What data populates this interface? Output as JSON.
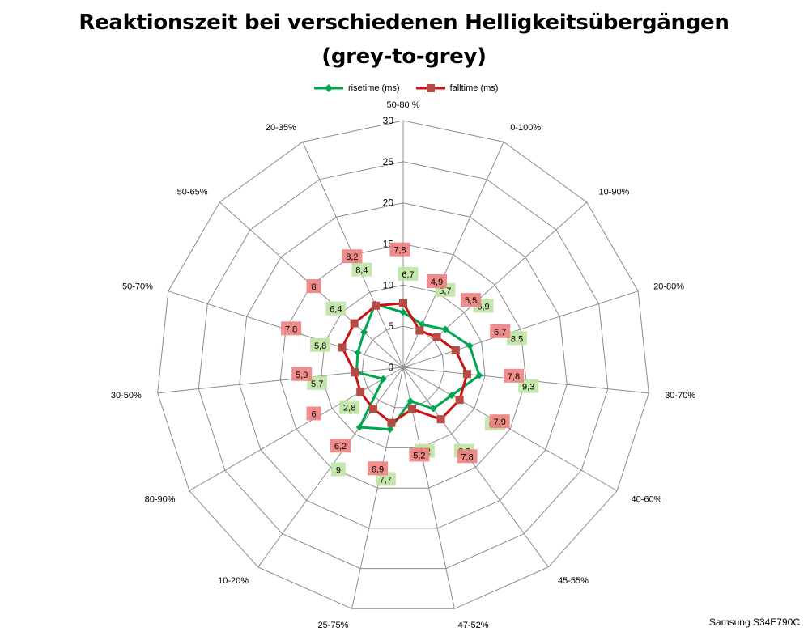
{
  "title_line1": "Reaktionszeit bei verschiedenen Helligkeitsübergängen",
  "title_line2": "(grey-to-grey)",
  "footer": "Samsung S34E790C",
  "colors": {
    "rise": "#00a64f",
    "fall": "#cc1111",
    "rise_label_bg": "#bfe3a3",
    "fall_label_bg": "#f08080"
  },
  "chart_data": {
    "type": "radar",
    "categories": [
      "50-80 %",
      "0-100%",
      "10-90%",
      "20-80%",
      "30-70%",
      "40-60%",
      "45-55%",
      "47-52%",
      "25-75%",
      "10-20%",
      "80-90%",
      "30-50%",
      "50-70%",
      "50-65%",
      "20-35%"
    ],
    "rlim": [
      0,
      30
    ],
    "rticks": [
      0,
      5,
      10,
      15,
      20,
      25,
      30
    ],
    "series": [
      {
        "name": "risetime (ms)",
        "values": [
          6.7,
          5.7,
          6.9,
          8.5,
          9.3,
          6.8,
          6.2,
          4.2,
          7.7,
          9,
          2.8,
          5.7,
          5.8,
          6.4,
          8.4
        ],
        "labels": [
          "6,7",
          "5,7",
          "6,9",
          "8,5",
          "9,3",
          "6,8",
          "6,2",
          "4,2",
          "7,7",
          "9",
          "2,8",
          "5,7",
          "5,8",
          "6,4",
          "8,4"
        ]
      },
      {
        "name": "falltime (ms)",
        "values": [
          7.8,
          4.9,
          5.5,
          6.7,
          7.8,
          7.9,
          7.8,
          5.2,
          6.9,
          6.2,
          6,
          5.9,
          7.8,
          8,
          8.2
        ],
        "labels": [
          "7,8",
          "4,9",
          "5,5",
          "6,7",
          "7,8",
          "7,9",
          "7,8",
          "5,2",
          "6,9",
          "6,2",
          "6",
          "5,9",
          "7,8",
          "8",
          "8,2"
        ]
      }
    ],
    "legend_position": "top",
    "grid": true
  }
}
